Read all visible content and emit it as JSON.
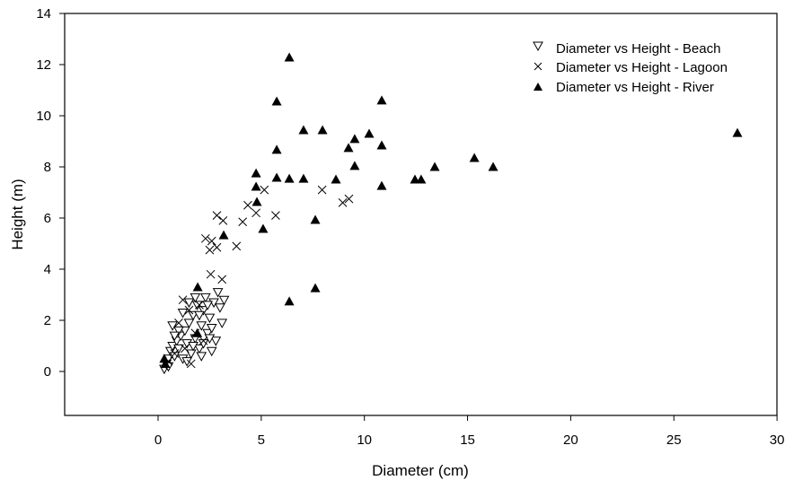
{
  "chart_data": {
    "type": "scatter",
    "title": "",
    "xlabel": "Diameter (cm)",
    "ylabel": "Height (m)",
    "xlim": [
      -4.5,
      30
    ],
    "ylim": [
      -1.7,
      14
    ],
    "xticks": [
      0,
      5,
      10,
      15,
      20,
      25,
      30
    ],
    "yticks": [
      0,
      2,
      4,
      6,
      8,
      10,
      12,
      14
    ],
    "grid": false,
    "legend_position": "upper right (inside)",
    "series": [
      {
        "name": "Diameter vs Height - Beach",
        "marker": "open-down-triangle",
        "points": [
          [
            0.3,
            0.1
          ],
          [
            0.4,
            0.3
          ],
          [
            0.5,
            0.5
          ],
          [
            0.6,
            0.8
          ],
          [
            0.7,
            1.0
          ],
          [
            0.8,
            0.6
          ],
          [
            0.9,
            1.2
          ],
          [
            1.0,
            0.9
          ],
          [
            1.1,
            1.4
          ],
          [
            1.2,
            0.5
          ],
          [
            1.3,
            1.6
          ],
          [
            1.4,
            1.1
          ],
          [
            1.5,
            1.9
          ],
          [
            1.6,
            0.7
          ],
          [
            1.7,
            2.2
          ],
          [
            1.8,
            1.3
          ],
          [
            1.9,
            2.6
          ],
          [
            2.0,
            0.9
          ],
          [
            2.1,
            1.8
          ],
          [
            2.2,
            2.4
          ],
          [
            2.3,
            2.9
          ],
          [
            2.4,
            1.5
          ],
          [
            2.5,
            2.1
          ],
          [
            2.6,
            0.8
          ],
          [
            2.7,
            2.7
          ],
          [
            2.8,
            1.2
          ],
          [
            2.9,
            3.1
          ],
          [
            3.0,
            2.5
          ],
          [
            3.1,
            1.9
          ],
          [
            3.2,
            2.8
          ],
          [
            0.7,
            1.8
          ],
          [
            1.0,
            1.6
          ],
          [
            1.2,
            2.3
          ],
          [
            1.5,
            2.7
          ],
          [
            1.8,
            2.9
          ],
          [
            2.0,
            2.2
          ],
          [
            2.2,
            1.1
          ],
          [
            2.4,
            2.6
          ],
          [
            2.6,
            1.7
          ],
          [
            1.4,
            0.4
          ],
          [
            0.5,
            0.2
          ],
          [
            0.8,
            1.4
          ],
          [
            1.7,
            1.0
          ],
          [
            2.1,
            0.6
          ],
          [
            2.5,
            1.3
          ]
        ]
      },
      {
        "name": "Diameter vs Height - Lagoon",
        "marker": "x",
        "points": [
          [
            4.75,
            6.2
          ],
          [
            5.15,
            7.1
          ],
          [
            4.35,
            6.5
          ],
          [
            2.85,
            6.1
          ],
          [
            3.15,
            5.9
          ],
          [
            2.3,
            5.2
          ],
          [
            2.6,
            5.1
          ],
          [
            2.5,
            4.75
          ],
          [
            2.85,
            4.85
          ],
          [
            4.1,
            5.85
          ],
          [
            3.8,
            4.9
          ],
          [
            5.7,
            6.1
          ],
          [
            7.95,
            7.1
          ],
          [
            8.95,
            6.6
          ],
          [
            9.25,
            6.75
          ],
          [
            2.55,
            3.8
          ],
          [
            3.1,
            3.6
          ],
          [
            1.2,
            2.8
          ],
          [
            1.5,
            2.4
          ],
          [
            1.0,
            1.9
          ],
          [
            1.8,
            1.5
          ],
          [
            2.0,
            2.6
          ],
          [
            1.3,
            0.9
          ],
          [
            0.8,
            0.7
          ],
          [
            1.6,
            0.3
          ],
          [
            2.2,
            1.2
          ],
          [
            0.5,
            0.4
          ]
        ]
      },
      {
        "name": "Diameter vs Height - River",
        "marker": "filled-up-triangle",
        "points": [
          [
            6.36,
            12.28
          ],
          [
            5.75,
            10.56
          ],
          [
            10.84,
            10.6
          ],
          [
            7.05,
            9.44
          ],
          [
            7.97,
            9.44
          ],
          [
            5.75,
            8.67
          ],
          [
            9.53,
            9.09
          ],
          [
            10.23,
            9.3
          ],
          [
            10.84,
            8.84
          ],
          [
            9.23,
            8.74
          ],
          [
            4.75,
            7.75
          ],
          [
            5.75,
            7.58
          ],
          [
            6.36,
            7.54
          ],
          [
            7.05,
            7.54
          ],
          [
            8.62,
            7.51
          ],
          [
            9.53,
            8.04
          ],
          [
            4.75,
            7.23
          ],
          [
            10.84,
            7.26
          ],
          [
            12.45,
            7.51
          ],
          [
            12.75,
            7.51
          ],
          [
            13.41,
            8.0
          ],
          [
            15.33,
            8.35
          ],
          [
            16.24,
            8.0
          ],
          [
            28.08,
            9.33
          ],
          [
            4.79,
            6.63
          ],
          [
            5.09,
            5.58
          ],
          [
            7.62,
            5.93
          ],
          [
            3.18,
            5.33
          ],
          [
            6.36,
            2.74
          ],
          [
            7.62,
            3.26
          ],
          [
            1.92,
            3.3
          ],
          [
            1.9,
            1.5
          ],
          [
            0.3,
            0.5
          ],
          [
            0.35,
            0.3
          ]
        ]
      }
    ]
  },
  "legend": {
    "items": [
      {
        "label": "Diameter vs Height - Beach"
      },
      {
        "label": "Diameter vs Height - Lagoon"
      },
      {
        "label": "Diameter vs Height - River"
      }
    ]
  },
  "axes": {
    "x_title": "Diameter (cm)",
    "y_title": "Height (m)",
    "x_tick_labels": [
      "0",
      "5",
      "10",
      "15",
      "20",
      "25",
      "30"
    ],
    "y_tick_labels": [
      "0",
      "2",
      "4",
      "6",
      "8",
      "10",
      "12",
      "14"
    ]
  }
}
